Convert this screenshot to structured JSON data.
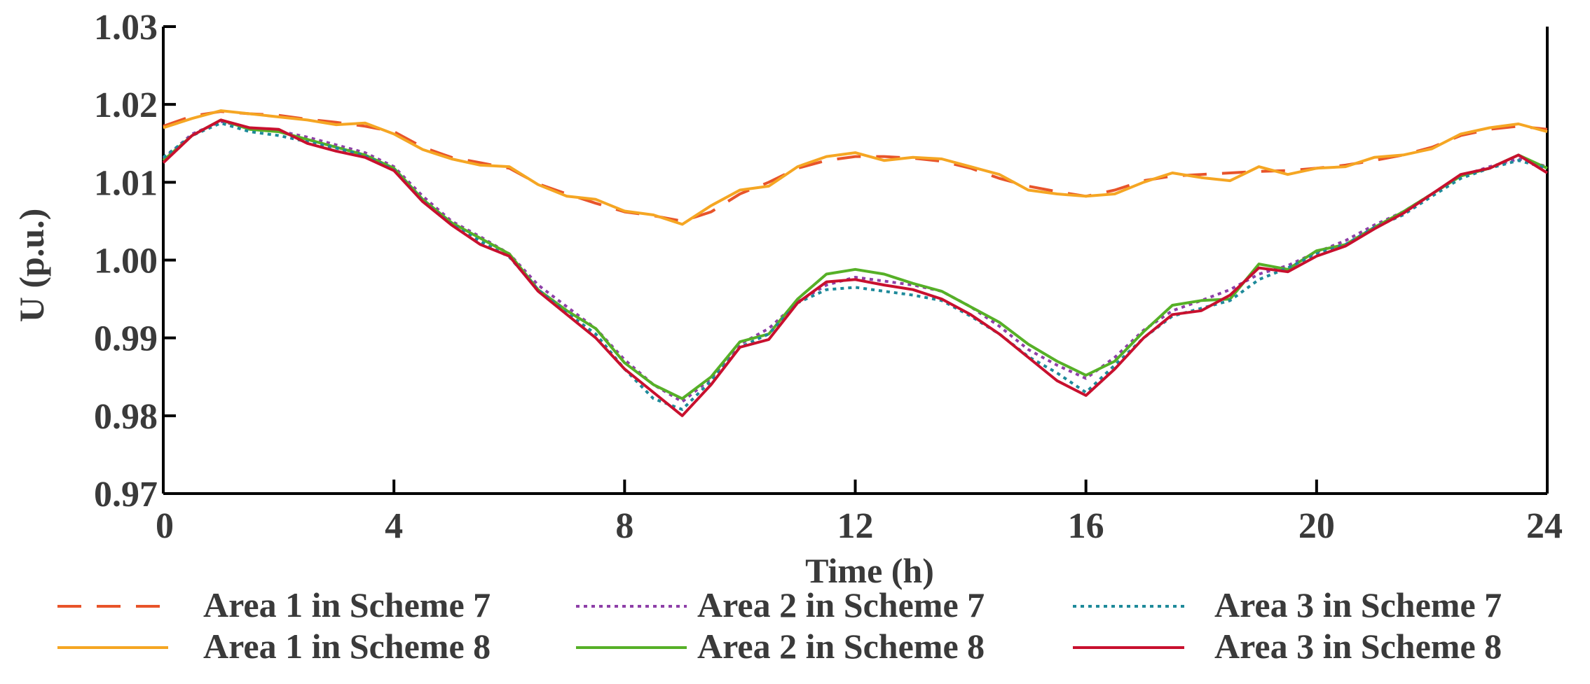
{
  "chart_data": {
    "type": "line",
    "title": "",
    "xlabel": "Time (h)",
    "ylabel": "U (p.u.)",
    "xlim": [
      0,
      24
    ],
    "ylim": [
      0.97,
      1.03
    ],
    "xticks": [
      0,
      4,
      8,
      12,
      16,
      20,
      24
    ],
    "yticks": [
      0.97,
      0.98,
      0.99,
      1.0,
      1.01,
      1.02,
      1.03
    ],
    "xtick_labels": [
      "0",
      "4",
      "8",
      "12",
      "16",
      "20",
      "24"
    ],
    "ytick_labels": [
      "0.97",
      "0.98",
      "0.99",
      "1.00",
      "1.01",
      "1.02",
      "1.03"
    ],
    "grid": false,
    "legend_position": "bottom",
    "series": [
      {
        "name": "Area 1 in Scheme 7",
        "color": "#E8542A",
        "dash": "long-dash",
        "x": [
          0,
          0.5,
          1,
          1.5,
          2,
          2.5,
          3,
          3.5,
          4,
          4.5,
          5,
          5.5,
          6,
          6.5,
          7,
          7.5,
          8,
          8.5,
          9,
          9.5,
          10,
          10.5,
          11,
          11.5,
          12,
          12.5,
          13,
          13.5,
          14,
          14.5,
          15,
          15.5,
          16,
          16.5,
          17,
          17.5,
          18,
          18.5,
          19,
          19.5,
          20,
          20.5,
          21,
          21.5,
          22,
          22.5,
          23,
          23.5,
          24
        ],
        "y": [
          1.0172,
          1.0185,
          1.0191,
          1.0188,
          1.0186,
          1.0181,
          1.0177,
          1.0172,
          1.0165,
          1.0145,
          1.0132,
          1.0125,
          1.0118,
          1.0098,
          1.0085,
          1.0073,
          1.0062,
          1.0057,
          1.005,
          1.0062,
          1.0085,
          1.01,
          1.0118,
          1.0128,
          1.0133,
          1.0133,
          1.0131,
          1.0127,
          1.0118,
          1.0105,
          1.0095,
          1.0088,
          1.0082,
          1.009,
          1.0102,
          1.0108,
          1.011,
          1.0112,
          1.0114,
          1.0115,
          1.0118,
          1.0122,
          1.0128,
          1.0135,
          1.0145,
          1.016,
          1.0168,
          1.0172,
          1.0168
        ]
      },
      {
        "name": "Area 1 in Scheme 8",
        "color": "#F5A623",
        "dash": "solid",
        "x": [
          0,
          0.5,
          1,
          1.5,
          2,
          2.5,
          3,
          3.5,
          4,
          4.5,
          5,
          5.5,
          6,
          6.5,
          7,
          7.5,
          8,
          8.5,
          9,
          9.5,
          10,
          10.5,
          11,
          11.5,
          12,
          12.5,
          13,
          13.5,
          14,
          14.5,
          15,
          15.5,
          16,
          16.5,
          17,
          17.5,
          18,
          18.5,
          19,
          19.5,
          20,
          20.5,
          21,
          21.5,
          22,
          22.5,
          23,
          23.5,
          24
        ],
        "y": [
          1.017,
          1.0182,
          1.0192,
          1.0188,
          1.0184,
          1.018,
          1.0174,
          1.0176,
          1.0162,
          1.0142,
          1.013,
          1.0122,
          1.012,
          1.0097,
          1.0082,
          1.0078,
          1.0063,
          1.0058,
          1.0046,
          1.007,
          1.009,
          1.0095,
          1.012,
          1.0133,
          1.0138,
          1.0128,
          1.0132,
          1.013,
          1.012,
          1.011,
          1.009,
          1.0085,
          1.0082,
          1.0085,
          1.01,
          1.0112,
          1.0106,
          1.0102,
          1.012,
          1.011,
          1.0118,
          1.012,
          1.0132,
          1.0135,
          1.0143,
          1.0162,
          1.017,
          1.0175,
          1.0165
        ]
      },
      {
        "name": "Area 2 in Scheme 7",
        "color": "#8E3FA8",
        "dash": "dotted",
        "x": [
          0,
          0.5,
          1,
          1.5,
          2,
          2.5,
          3,
          3.5,
          4,
          4.5,
          5,
          5.5,
          6,
          6.5,
          7,
          7.5,
          8,
          8.5,
          9,
          9.5,
          10,
          10.5,
          11,
          11.5,
          12,
          12.5,
          13,
          13.5,
          14,
          14.5,
          15,
          15.5,
          16,
          16.5,
          17,
          17.5,
          18,
          18.5,
          19,
          19.5,
          20,
          20.5,
          21,
          21.5,
          22,
          22.5,
          23,
          23.5,
          24
        ],
        "y": [
          1.013,
          1.0162,
          1.0178,
          1.017,
          1.0166,
          1.0158,
          1.0148,
          1.0138,
          1.012,
          1.0082,
          1.005,
          1.003,
          1.0008,
          0.9968,
          0.994,
          0.9912,
          0.9872,
          0.984,
          0.9818,
          0.9848,
          0.9892,
          0.9912,
          0.9946,
          0.9968,
          0.9978,
          0.9973,
          0.9968,
          0.996,
          0.994,
          0.9915,
          0.9885,
          0.9865,
          0.9848,
          0.9875,
          0.991,
          0.9935,
          0.9948,
          0.9962,
          0.9982,
          0.9993,
          1.001,
          1.0025,
          1.0045,
          1.0062,
          1.0085,
          1.0108,
          1.012,
          1.013,
          1.012
        ]
      },
      {
        "name": "Area 2 in Scheme 8",
        "color": "#56B027",
        "dash": "solid",
        "x": [
          0,
          0.5,
          1,
          1.5,
          2,
          2.5,
          3,
          3.5,
          4,
          4.5,
          5,
          5.5,
          6,
          6.5,
          7,
          7.5,
          8,
          8.5,
          9,
          9.5,
          10,
          10.5,
          11,
          11.5,
          12,
          12.5,
          13,
          13.5,
          14,
          14.5,
          15,
          15.5,
          16,
          16.5,
          17,
          17.5,
          18,
          18.5,
          19,
          19.5,
          20,
          20.5,
          21,
          21.5,
          22,
          22.5,
          23,
          23.5,
          24
        ],
        "y": [
          1.0128,
          1.016,
          1.018,
          1.0168,
          1.0165,
          1.0155,
          1.0145,
          1.0135,
          1.0118,
          1.0078,
          1.0048,
          1.0028,
          1.0008,
          0.9962,
          0.9935,
          0.9912,
          0.9868,
          0.984,
          0.9822,
          0.985,
          0.9895,
          0.9905,
          0.995,
          0.9982,
          0.9988,
          0.9982,
          0.997,
          0.996,
          0.994,
          0.992,
          0.9892,
          0.987,
          0.9852,
          0.987,
          0.9908,
          0.9942,
          0.9948,
          0.995,
          0.9995,
          0.9988,
          1.0012,
          1.002,
          1.0042,
          1.0062,
          1.0085,
          1.0108,
          1.0118,
          1.0135,
          1.0118
        ]
      },
      {
        "name": "Area 3 in Scheme 7",
        "color": "#1E8A9A",
        "dash": "dotted",
        "x": [
          0,
          0.5,
          1,
          1.5,
          2,
          2.5,
          3,
          3.5,
          4,
          4.5,
          5,
          5.5,
          6,
          6.5,
          7,
          7.5,
          8,
          8.5,
          9,
          9.5,
          10,
          10.5,
          11,
          11.5,
          12,
          12.5,
          13,
          13.5,
          14,
          14.5,
          15,
          15.5,
          16,
          16.5,
          17,
          17.5,
          18,
          18.5,
          19,
          19.5,
          20,
          20.5,
          21,
          21.5,
          22,
          22.5,
          23,
          23.5,
          24
        ],
        "y": [
          1.0132,
          1.016,
          1.0176,
          1.0165,
          1.016,
          1.0152,
          1.0144,
          1.0134,
          1.0116,
          1.0076,
          1.0046,
          1.0024,
          1.0004,
          0.9962,
          0.9932,
          0.9905,
          0.986,
          0.9822,
          0.9808,
          0.9845,
          0.9888,
          0.9905,
          0.9945,
          0.9962,
          0.9965,
          0.996,
          0.9955,
          0.9948,
          0.9928,
          0.9905,
          0.9876,
          0.9855,
          0.983,
          0.9865,
          0.99,
          0.9928,
          0.9938,
          0.9948,
          0.9975,
          0.999,
          1.0008,
          1.002,
          1.0042,
          1.0058,
          1.0082,
          1.0105,
          1.0118,
          1.0128,
          1.0118
        ]
      },
      {
        "name": "Area 3 in Scheme 8",
        "color": "#C8102E",
        "dash": "solid",
        "x": [
          0,
          0.5,
          1,
          1.5,
          2,
          2.5,
          3,
          3.5,
          4,
          4.5,
          5,
          5.5,
          6,
          6.5,
          7,
          7.5,
          8,
          8.5,
          9,
          9.5,
          10,
          10.5,
          11,
          11.5,
          12,
          12.5,
          13,
          13.5,
          14,
          14.5,
          15,
          15.5,
          16,
          16.5,
          17,
          17.5,
          18,
          18.5,
          19,
          19.5,
          20,
          20.5,
          21,
          21.5,
          22,
          22.5,
          23,
          23.5,
          24
        ],
        "y": [
          1.0125,
          1.016,
          1.018,
          1.017,
          1.0168,
          1.015,
          1.014,
          1.0132,
          1.0115,
          1.0075,
          1.0045,
          1.002,
          1.0005,
          0.996,
          0.993,
          0.99,
          0.986,
          0.983,
          0.98,
          0.984,
          0.9888,
          0.9898,
          0.9945,
          0.9972,
          0.9975,
          0.9968,
          0.9962,
          0.995,
          0.993,
          0.9905,
          0.9875,
          0.9845,
          0.9826,
          0.986,
          0.99,
          0.993,
          0.9935,
          0.9955,
          0.999,
          0.9985,
          1.0005,
          1.0018,
          1.004,
          1.006,
          1.0085,
          1.011,
          1.0118,
          1.0135,
          1.0112
        ]
      }
    ]
  }
}
